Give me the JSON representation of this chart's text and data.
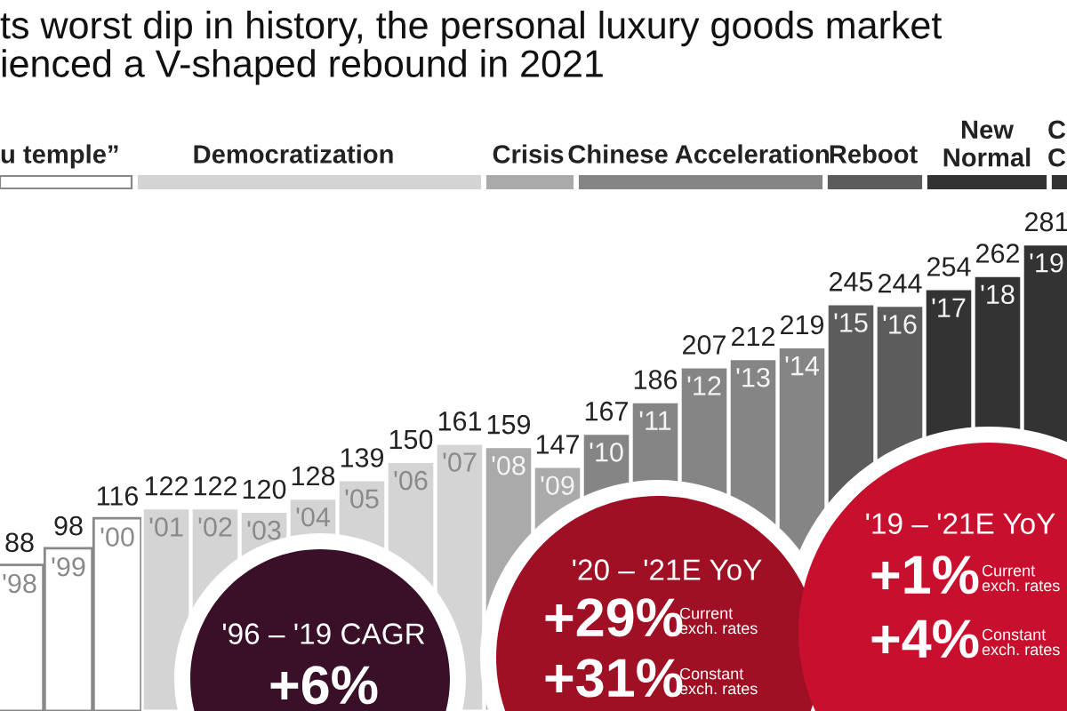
{
  "chart_data": {
    "type": "bar",
    "title": "ts worst dip in history, the personal luxury goods market\nienced a V-shaped rebound in 2021",
    "categories": [
      "'98",
      "'99",
      "'00",
      "'01",
      "'02",
      "'03",
      "'04",
      "'05",
      "'06",
      "'07",
      "'08",
      "'09",
      "'10",
      "'11",
      "'12",
      "'13",
      "'14",
      "'15",
      "'16",
      "'17",
      "'18",
      "'19"
    ],
    "values": [
      88,
      98,
      116,
      122,
      122,
      120,
      128,
      139,
      150,
      161,
      159,
      147,
      167,
      186,
      207,
      212,
      219,
      245,
      244,
      254,
      262,
      281
    ],
    "colors": [
      "#ffffff",
      "#ffffff",
      "#ffffff",
      "#d4d4d4",
      "#d4d4d4",
      "#d4d4d4",
      "#d4d4d4",
      "#d4d4d4",
      "#d4d4d4",
      "#d4d4d4",
      "#aaaaaa",
      "#aaaaaa",
      "#858585",
      "#858585",
      "#858585",
      "#858585",
      "#858585",
      "#5c5c5c",
      "#5c5c5c",
      "#333333",
      "#333333",
      "#333333"
    ],
    "data_labels": true,
    "annotations": [
      "u temple”",
      "Democratization",
      "Crisis",
      "Chinese Acceleration",
      "Reboot",
      "New\nNormal",
      "C\nC",
      "'96 – '19 CAGR",
      "+6%",
      "'20 – '21E YoY",
      "+29%",
      "Current\nexch. rates",
      "+31%",
      "Constant\nexch. rates",
      "'19 – '21E YoY",
      "+1%",
      "Current\nexch. rates",
      "+4%",
      "Constant\nexch. rates"
    ]
  }
}
